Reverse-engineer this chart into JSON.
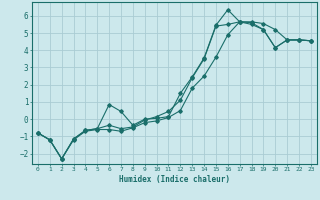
{
  "xlabel": "Humidex (Indice chaleur)",
  "background_color": "#cce8ec",
  "grid_color": "#aaccd4",
  "line_color": "#1a6e6a",
  "xlim": [
    -0.5,
    23.5
  ],
  "ylim": [
    -2.6,
    6.8
  ],
  "yticks": [
    -2,
    -1,
    0,
    1,
    2,
    3,
    4,
    5,
    6
  ],
  "xticks": [
    0,
    1,
    2,
    3,
    4,
    5,
    6,
    7,
    8,
    9,
    10,
    11,
    12,
    13,
    14,
    15,
    16,
    17,
    18,
    19,
    20,
    21,
    22,
    23
  ],
  "line1_x": [
    0,
    1,
    2,
    3,
    4,
    5,
    6,
    7,
    8,
    9,
    10,
    11,
    12,
    13,
    14,
    15,
    16,
    17,
    18,
    19,
    20,
    21,
    22,
    23
  ],
  "line1_y": [
    -0.8,
    -1.2,
    -2.3,
    -1.2,
    -0.7,
    -0.6,
    -0.6,
    -0.7,
    -0.5,
    -0.2,
    -0.1,
    0.1,
    0.5,
    1.8,
    2.5,
    3.6,
    4.9,
    5.65,
    5.6,
    5.2,
    4.15,
    4.6,
    4.6,
    4.55
  ],
  "line2_x": [
    0,
    1,
    2,
    3,
    4,
    5,
    6,
    7,
    8,
    9,
    10,
    11,
    12,
    13,
    14,
    15,
    16,
    17,
    18,
    19,
    20,
    21,
    22,
    23
  ],
  "line2_y": [
    -0.8,
    -1.2,
    -2.3,
    -1.15,
    -0.65,
    -0.55,
    0.85,
    0.45,
    -0.35,
    0.0,
    0.05,
    0.15,
    1.5,
    2.45,
    3.55,
    5.45,
    6.35,
    5.65,
    5.65,
    5.55,
    5.2,
    4.6,
    4.6,
    4.55
  ],
  "line3_x": [
    0,
    1,
    2,
    3,
    4,
    5,
    6,
    7,
    8,
    9,
    10,
    11,
    12,
    13,
    14,
    15,
    16,
    17,
    18,
    19,
    20,
    21,
    22,
    23
  ],
  "line3_y": [
    -0.8,
    -1.2,
    -2.3,
    -1.15,
    -0.65,
    -0.55,
    -0.35,
    -0.55,
    -0.45,
    -0.05,
    0.15,
    0.45,
    1.1,
    2.4,
    3.5,
    5.4,
    5.5,
    5.65,
    5.5,
    5.2,
    4.15,
    4.6,
    4.6,
    4.55
  ]
}
